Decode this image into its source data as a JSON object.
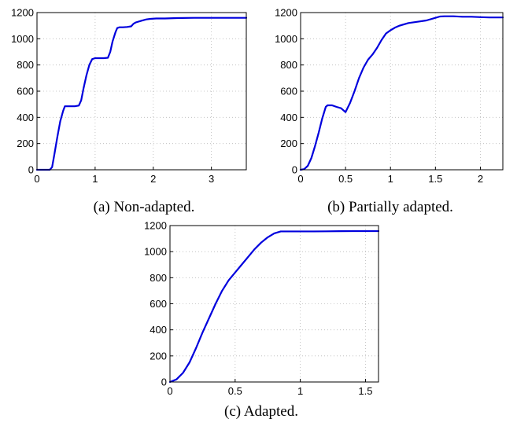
{
  "chart_data": [
    {
      "type": "line",
      "caption": "(a) Non-adapted.",
      "xlabel": "",
      "ylabel": "",
      "xlim": [
        0,
        3.6
      ],
      "ylim": [
        0,
        1200
      ],
      "xticks": [
        "0",
        "1",
        "2",
        "3"
      ],
      "yticks": [
        "0",
        "200",
        "400",
        "600",
        "800",
        "1000",
        "1200"
      ],
      "grid": true,
      "color": "#0000dd",
      "series": [
        {
          "x": [
            0,
            0.22,
            0.26,
            0.3,
            0.35,
            0.4,
            0.45,
            0.48,
            0.52,
            0.58,
            0.65,
            0.72,
            0.76,
            0.8,
            0.85,
            0.9,
            0.95,
            1.0,
            1.05,
            1.1,
            1.15,
            1.22,
            1.26,
            1.3,
            1.35,
            1.38,
            1.42,
            1.48,
            1.55,
            1.62,
            1.66,
            1.7,
            1.8,
            1.88,
            1.95,
            2.05,
            2.2,
            2.4,
            2.7,
            3.0,
            3.3,
            3.6
          ],
          "y": [
            0,
            0,
            20,
            120,
            250,
            370,
            450,
            485,
            485,
            485,
            485,
            490,
            530,
            620,
            720,
            800,
            845,
            852,
            852,
            852,
            852,
            855,
            900,
            980,
            1050,
            1082,
            1088,
            1088,
            1090,
            1095,
            1115,
            1125,
            1138,
            1148,
            1152,
            1155,
            1155,
            1158,
            1160,
            1160,
            1160,
            1160
          ]
        }
      ]
    },
    {
      "type": "line",
      "caption": "(b) Partially adapted.",
      "xlabel": "",
      "ylabel": "",
      "xlim": [
        0,
        2.25
      ],
      "ylim": [
        0,
        1200
      ],
      "xticks": [
        "0",
        "0.5",
        "1",
        "1.5",
        "2"
      ],
      "yticks": [
        "0",
        "200",
        "400",
        "600",
        "800",
        "1000",
        "1200"
      ],
      "grid": true,
      "color": "#0000dd",
      "series": [
        {
          "x": [
            0,
            0.04,
            0.08,
            0.12,
            0.16,
            0.2,
            0.24,
            0.28,
            0.3,
            0.35,
            0.4,
            0.45,
            0.5,
            0.55,
            0.6,
            0.65,
            0.7,
            0.75,
            0.8,
            0.85,
            0.9,
            0.95,
            1.0,
            1.05,
            1.1,
            1.2,
            1.3,
            1.4,
            1.5,
            1.55,
            1.6,
            1.7,
            1.8,
            1.9,
            2.0,
            2.1,
            2.25
          ],
          "y": [
            0,
            5,
            30,
            90,
            180,
            280,
            390,
            480,
            492,
            492,
            480,
            470,
            440,
            510,
            600,
            700,
            780,
            840,
            880,
            930,
            990,
            1040,
            1065,
            1085,
            1100,
            1120,
            1130,
            1140,
            1160,
            1170,
            1172,
            1172,
            1168,
            1168,
            1165,
            1163,
            1163
          ]
        }
      ]
    },
    {
      "type": "line",
      "caption": "(c) Adapted.",
      "xlabel": "",
      "ylabel": "",
      "xlim": [
        0,
        1.6
      ],
      "ylim": [
        0,
        1200
      ],
      "xticks": [
        "0",
        "0.5",
        "1",
        "1.5"
      ],
      "yticks": [
        "0",
        "200",
        "400",
        "600",
        "800",
        "1000",
        "1200"
      ],
      "grid": true,
      "color": "#0000dd",
      "series": [
        {
          "x": [
            0,
            0.05,
            0.1,
            0.15,
            0.2,
            0.25,
            0.3,
            0.35,
            0.4,
            0.45,
            0.5,
            0.55,
            0.6,
            0.65,
            0.7,
            0.75,
            0.8,
            0.85,
            0.9,
            1.0,
            1.1,
            1.2,
            1.3,
            1.4,
            1.5,
            1.6
          ],
          "y": [
            0,
            20,
            70,
            150,
            260,
            380,
            490,
            600,
            700,
            780,
            840,
            900,
            960,
            1020,
            1070,
            1110,
            1140,
            1155,
            1155,
            1155,
            1155,
            1156,
            1157,
            1158,
            1158,
            1158
          ]
        }
      ]
    }
  ]
}
